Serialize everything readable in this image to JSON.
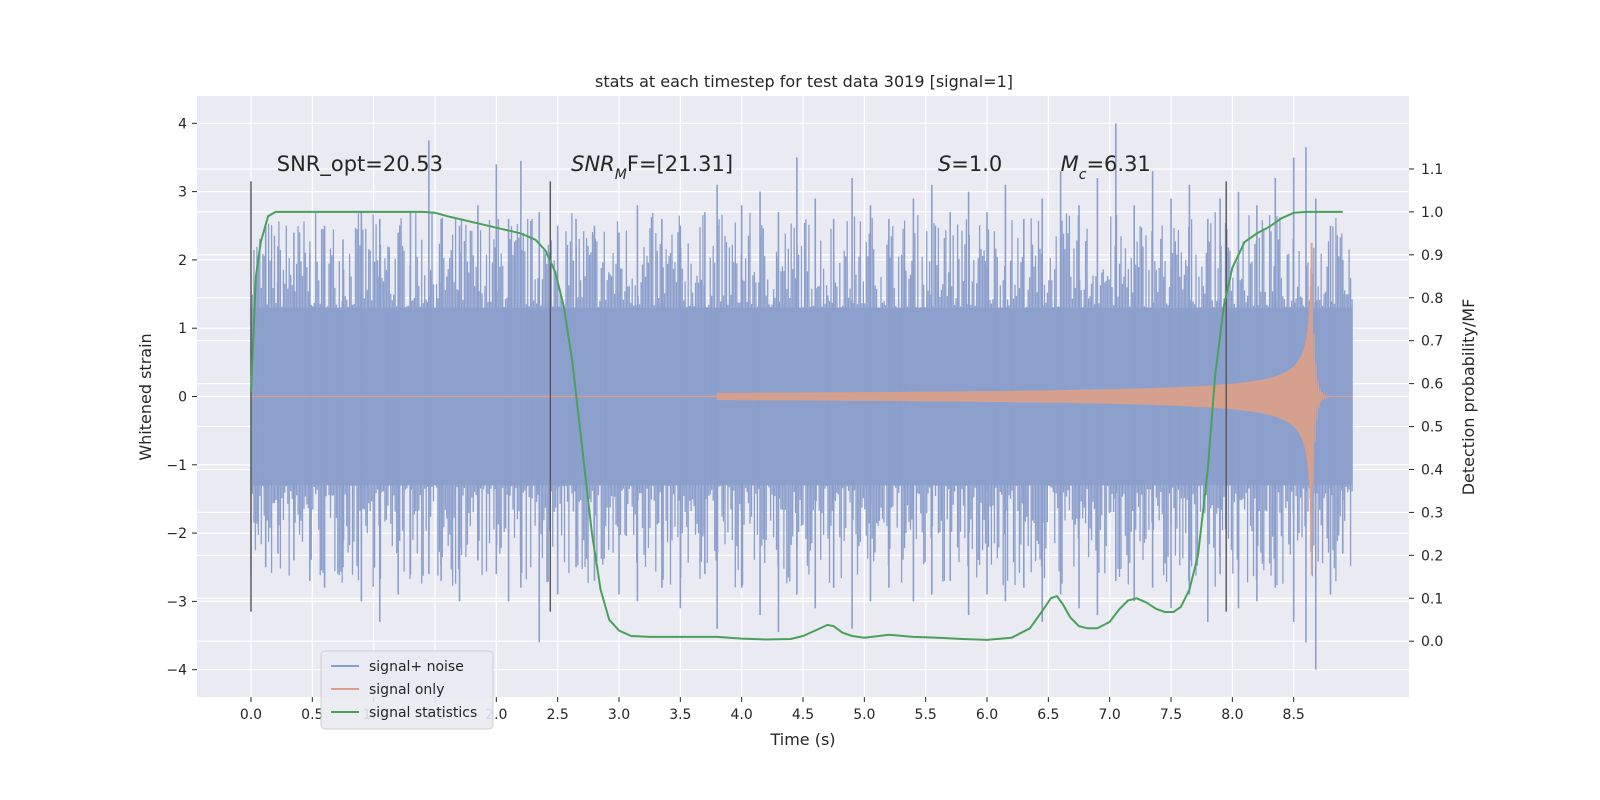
{
  "chart_data": {
    "type": "line",
    "title": "stats at each timestep for test data 3019 [signal=1]",
    "xlabel": "Time (s)",
    "ylabel": "Whitened strain",
    "y2label": "Detection probability/MF",
    "xlim": [
      -0.44,
      9.44
    ],
    "ylim": [
      -4.4,
      4.4
    ],
    "y2lim": [
      -0.13,
      1.27
    ],
    "xticks": [
      0.0,
      0.5,
      1.0,
      1.5,
      2.0,
      2.5,
      3.0,
      3.5,
      4.0,
      4.5,
      5.0,
      5.5,
      6.0,
      6.5,
      7.0,
      7.5,
      8.0,
      8.5
    ],
    "xtick_labels": [
      "0.0",
      "0.5",
      "1.0",
      "1.5",
      "2.0",
      "2.5",
      "3.0",
      "3.5",
      "4.0",
      "4.5",
      "5.0",
      "5.5",
      "6.0",
      "6.5",
      "7.0",
      "7.5",
      "8.0",
      "8.5"
    ],
    "yticks": [
      -4,
      -3,
      -2,
      -1,
      0,
      1,
      2,
      3,
      4
    ],
    "ytick_labels": [
      "−4",
      "−3",
      "−2",
      "−1",
      "0",
      "1",
      "2",
      "3",
      "4"
    ],
    "y2ticks": [
      0.0,
      0.1,
      0.2,
      0.3,
      0.4,
      0.5,
      0.6,
      0.7,
      0.8,
      0.9,
      1.0,
      1.1
    ],
    "y2tick_labels": [
      "0.0",
      "0.1",
      "0.2",
      "0.3",
      "0.4",
      "0.5",
      "0.6",
      "0.7",
      "0.8",
      "0.9",
      "1.0",
      "1.1"
    ],
    "grid": true,
    "legend_position": "lower-left",
    "series": [
      {
        "name": "signal+ noise",
        "color": "#8c9fcc",
        "axis": "left",
        "x_range": [
          0.0,
          8.98
        ],
        "envelope_core": [
          -1.3,
          1.3
        ],
        "spikes_x": [
          0.05,
          0.12,
          0.22,
          0.35,
          0.48,
          0.6,
          0.75,
          0.9,
          1.05,
          1.2,
          1.3,
          1.45,
          1.55,
          1.7,
          1.85,
          2.0,
          2.1,
          2.2,
          2.35,
          2.5,
          2.65,
          2.8,
          3.0,
          3.15,
          3.35,
          3.5,
          3.7,
          3.8,
          4.0,
          4.15,
          4.3,
          4.45,
          4.6,
          4.75,
          4.9,
          5.05,
          5.2,
          5.4,
          5.55,
          5.7,
          5.85,
          6.0,
          6.15,
          6.3,
          6.45,
          6.6,
          6.75,
          6.9,
          7.05,
          7.2,
          7.35,
          7.5,
          7.65,
          7.8,
          7.9,
          8.05,
          8.2,
          8.35,
          8.5,
          8.6,
          8.68,
          8.8,
          8.9
        ],
        "spikes_hi": [
          1.6,
          2.5,
          2.2,
          2.4,
          2.1,
          2.5,
          2.3,
          2.7,
          2.6,
          2.4,
          2.7,
          3.75,
          2.6,
          2.5,
          2.8,
          3.4,
          2.6,
          3.45,
          2.7,
          2.5,
          2.6,
          2.5,
          2.4,
          2.8,
          2.6,
          2.5,
          2.7,
          3.1,
          2.8,
          3.0,
          2.7,
          3.5,
          2.9,
          2.6,
          3.2,
          2.8,
          2.6,
          2.9,
          3.1,
          2.7,
          3.0,
          2.7,
          3.1,
          2.6,
          2.9,
          3.3,
          2.8,
          3.2,
          4.0,
          2.8,
          3.3,
          2.9,
          3.1,
          2.6,
          2.9,
          3.0,
          2.8,
          3.2,
          3.5,
          3.65,
          2.9,
          2.5,
          2.0
        ],
        "spikes_lo": [
          -1.8,
          -2.5,
          -2.3,
          -2.4,
          -2.7,
          -2.8,
          -2.5,
          -3.0,
          -3.3,
          -2.9,
          -2.6,
          -2.6,
          -2.7,
          -3.0,
          -2.4,
          -2.6,
          -3.0,
          -2.8,
          -3.6,
          -2.9,
          -2.5,
          -2.7,
          -2.9,
          -3.0,
          -2.8,
          -3.1,
          -2.6,
          -3.4,
          -2.8,
          -3.2,
          -3.45,
          -2.9,
          -3.1,
          -2.8,
          -3.4,
          -3.0,
          -2.8,
          -3.0,
          -2.9,
          -2.7,
          -3.2,
          -2.9,
          -3.0,
          -2.8,
          -3.3,
          -2.9,
          -3.1,
          -3.2,
          -2.7,
          -3.0,
          -2.8,
          -3.1,
          -2.9,
          -3.3,
          -2.6,
          -3.1,
          -3.0,
          -2.8,
          -3.3,
          -3.6,
          -4.0,
          -2.9,
          -2.3
        ]
      },
      {
        "name": "signal only",
        "color": "#d9a08a",
        "axis": "left",
        "chirp_start": 3.8,
        "chirp_merger": 8.65,
        "chirp_end": 8.98,
        "peak_positive": 2.25,
        "peak_negative": -2.6
      },
      {
        "name": "signal statistics",
        "color": "#4aa05a",
        "axis": "right",
        "x": [
          0.0,
          0.04,
          0.08,
          0.14,
          0.2,
          0.3,
          0.5,
          0.8,
          1.0,
          1.2,
          1.4,
          1.5,
          1.6,
          1.75,
          1.9,
          2.05,
          2.2,
          2.32,
          2.4,
          2.48,
          2.55,
          2.62,
          2.7,
          2.78,
          2.85,
          2.92,
          3.0,
          3.1,
          3.25,
          3.5,
          3.8,
          4.0,
          4.2,
          4.4,
          4.5,
          4.6,
          4.7,
          4.75,
          4.82,
          4.9,
          5.0,
          5.2,
          5.4,
          5.6,
          5.8,
          6.0,
          6.2,
          6.35,
          6.45,
          6.52,
          6.57,
          6.62,
          6.68,
          6.75,
          6.82,
          6.9,
          7.0,
          7.08,
          7.15,
          7.22,
          7.3,
          7.38,
          7.45,
          7.52,
          7.58,
          7.65,
          7.72,
          7.8,
          7.86,
          7.93,
          8.0,
          8.1,
          8.2,
          8.3,
          8.4,
          8.5,
          8.6,
          8.7,
          8.8,
          8.9
        ],
        "y": [
          0.58,
          0.85,
          0.93,
          0.99,
          1.0,
          1.0,
          1.0,
          1.0,
          1.0,
          1.0,
          1.0,
          0.998,
          0.99,
          0.98,
          0.97,
          0.96,
          0.95,
          0.935,
          0.91,
          0.86,
          0.78,
          0.65,
          0.45,
          0.25,
          0.12,
          0.05,
          0.025,
          0.012,
          0.01,
          0.01,
          0.01,
          0.006,
          0.004,
          0.005,
          0.012,
          0.025,
          0.038,
          0.035,
          0.02,
          0.012,
          0.008,
          0.015,
          0.01,
          0.008,
          0.005,
          0.003,
          0.008,
          0.03,
          0.07,
          0.1,
          0.105,
          0.085,
          0.055,
          0.035,
          0.03,
          0.03,
          0.045,
          0.075,
          0.095,
          0.1,
          0.09,
          0.075,
          0.068,
          0.068,
          0.08,
          0.12,
          0.2,
          0.4,
          0.62,
          0.78,
          0.87,
          0.93,
          0.95,
          0.965,
          0.985,
          0.998,
          1.0,
          1.0,
          1.0,
          1.0
        ]
      }
    ],
    "vlines": [
      {
        "x": 0.0,
        "ymin": -3.15,
        "ymax": 3.15
      },
      {
        "x": 2.44,
        "ymin": -3.15,
        "ymax": 3.15
      },
      {
        "x": 7.95,
        "ymin": -3.15,
        "ymax": 3.15
      }
    ],
    "annotations": [
      {
        "id": "snr-opt",
        "text": "SNR_opt=20.53",
        "x": 0.21,
        "y": 3.3
      },
      {
        "id": "snr-mf",
        "text": "SNR_MF=[21.31]",
        "x": 2.61,
        "y": 3.3
      },
      {
        "id": "s-value",
        "text": "S=1.0",
        "x": 5.6,
        "y": 3.3
      },
      {
        "id": "chirp-mass",
        "text": "M_c=6.31",
        "x": 6.6,
        "y": 3.3
      }
    ],
    "legend": [
      "signal+ noise",
      "signal only",
      "signal statistics"
    ],
    "colors": {
      "background": "#eaeaf2",
      "grid": "#ffffff",
      "text": "#262626",
      "vline": "#555555",
      "noise": "#8c9fcc",
      "signal": "#d9a08a",
      "stat": "#4aa05a"
    }
  }
}
